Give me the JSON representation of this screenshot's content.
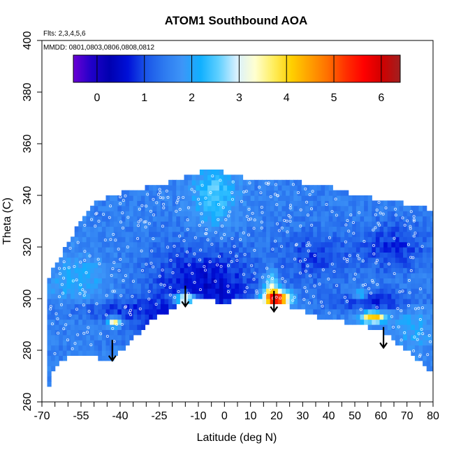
{
  "chart_data": {
    "type": "heatmap",
    "title": "ATOM1 Southbound AOA",
    "xlabel": "Latitude (deg N)",
    "ylabel": "Theta (C)",
    "flights_note": "Flts: 2,3,4,5,6",
    "dates_note": "MMDD: 0801,0803,0806,0808,0812",
    "xlim": [
      -70,
      80
    ],
    "ylim": [
      260,
      400
    ],
    "x_ticks": [
      "-70",
      "-55",
      "-40",
      "-25",
      "-10",
      "0",
      "10",
      "20",
      "30",
      "40",
      "50",
      "60",
      "70",
      "80"
    ],
    "x_tick_values": [
      -70,
      -55,
      -40,
      -25,
      -10,
      0,
      10,
      20,
      30,
      40,
      50,
      60,
      70,
      80
    ],
    "x_minor_ticks": [
      -65,
      -60,
      -50,
      -45,
      -35,
      -30,
      -20,
      -15,
      -5,
      5,
      15,
      25,
      35,
      45,
      55,
      65,
      75
    ],
    "y_ticks": [
      "260",
      "280",
      "300",
      "320",
      "340",
      "360",
      "380",
      "400"
    ],
    "y_tick_values": [
      260,
      280,
      300,
      320,
      340,
      360,
      380,
      400
    ],
    "colorbar": {
      "min": -0.5,
      "max": 6.4,
      "ticks": [
        "0",
        "1",
        "2",
        "3",
        "4",
        "5",
        "6"
      ],
      "tick_values": [
        0,
        1,
        2,
        3,
        4,
        5,
        6
      ],
      "stops": [
        "#6a00d4",
        "#2000c8",
        "#0000b0",
        "#0010d8",
        "#1a55e8",
        "#2d7af0",
        "#3d95f8",
        "#10b0ff",
        "#60d0ff",
        "#d8f0ff",
        "#ffffd0",
        "#ffee60",
        "#ffd000",
        "#ffa000",
        "#ff7000",
        "#ff3000",
        "#ff0000",
        "#d00000",
        "#a02020"
      ]
    },
    "surface_boundary": [
      [
        -68,
        264
      ],
      [
        -66,
        272
      ],
      [
        -62,
        276
      ],
      [
        -58,
        278
      ],
      [
        -53,
        278
      ],
      [
        -48,
        277
      ],
      [
        -44,
        276
      ],
      [
        -40,
        280
      ],
      [
        -36,
        283
      ],
      [
        -30,
        290
      ],
      [
        -24,
        294
      ],
      [
        -18,
        297
      ],
      [
        -13,
        299
      ],
      [
        -8,
        300
      ],
      [
        -3,
        299
      ],
      [
        0,
        298
      ],
      [
        3,
        299
      ],
      [
        6,
        300
      ],
      [
        10,
        300
      ],
      [
        14,
        299
      ],
      [
        18,
        298
      ],
      [
        22,
        298
      ],
      [
        28,
        296
      ],
      [
        35,
        293
      ],
      [
        42,
        292
      ],
      [
        50,
        290
      ],
      [
        55,
        289
      ],
      [
        61,
        287
      ],
      [
        66,
        283
      ],
      [
        70,
        280
      ],
      [
        74,
        276
      ],
      [
        78,
        273
      ],
      [
        80,
        272
      ]
    ],
    "top_boundary": [
      [
        -68,
        306
      ],
      [
        -66,
        312
      ],
      [
        -62,
        318
      ],
      [
        -60,
        322
      ],
      [
        -58,
        325
      ],
      [
        -55,
        330
      ],
      [
        -52,
        335
      ],
      [
        -48,
        338
      ],
      [
        -42,
        340
      ],
      [
        -36,
        342
      ],
      [
        -30,
        343
      ],
      [
        -24,
        344
      ],
      [
        -16,
        347
      ],
      [
        -10,
        349
      ],
      [
        -6,
        351
      ],
      [
        -2,
        350
      ],
      [
        0,
        349
      ],
      [
        4,
        348
      ],
      [
        10,
        346
      ],
      [
        16,
        347
      ],
      [
        24,
        346
      ],
      [
        30,
        345
      ],
      [
        36,
        344
      ],
      [
        42,
        343
      ],
      [
        48,
        341
      ],
      [
        52,
        340
      ],
      [
        56,
        339
      ],
      [
        62,
        338
      ],
      [
        68,
        337
      ],
      [
        74,
        336
      ],
      [
        78,
        335
      ],
      [
        80,
        334
      ]
    ],
    "background_aoa": 1.5,
    "aoa_features": [
      {
        "lat": -8,
        "theta": 304,
        "sx": 14,
        "sy": 12,
        "value": -1.0
      },
      {
        "lat": 35,
        "theta": 316,
        "sx": 9,
        "sy": 7,
        "value": -0.6
      },
      {
        "lat": 65,
        "theta": 320,
        "sx": 9,
        "sy": 7,
        "value": -0.7
      },
      {
        "lat": 60,
        "theta": 299,
        "sx": 12,
        "sy": 3,
        "value": -0.8
      },
      {
        "lat": -48,
        "theta": 296,
        "sx": 12,
        "sy": 3,
        "value": -0.6
      },
      {
        "lat": -30,
        "theta": 292,
        "sx": 8,
        "sy": 5,
        "value": -0.4
      },
      {
        "lat": -4,
        "theta": 340,
        "sx": 6,
        "sy": 9,
        "value": 1.0
      },
      {
        "lat": -56,
        "theta": 306,
        "sx": 8,
        "sy": 8,
        "value": 0.6
      },
      {
        "lat": 72,
        "theta": 290,
        "sx": 6,
        "sy": 8,
        "value": 0.5
      },
      {
        "lat": 20,
        "theta": 300,
        "sx": 3.5,
        "sy": 2.2,
        "value": 4.3
      },
      {
        "lat": 18,
        "theta": 305,
        "sx": 2,
        "sy": 4,
        "value": 1.6
      },
      {
        "lat": -15,
        "theta": 300,
        "sx": 3,
        "sy": 1.5,
        "value": 2.8
      },
      {
        "lat": -42,
        "theta": 291,
        "sx": 1.8,
        "sy": 1.3,
        "value": 2.4
      },
      {
        "lat": 57,
        "theta": 293,
        "sx": 3.5,
        "sy": 1.5,
        "value": 2.9
      },
      {
        "lat": 52,
        "theta": 302,
        "sx": 2,
        "sy": 1.4,
        "value": 1.4
      }
    ],
    "arrows": [
      {
        "lat": -43,
        "theta_start": 284,
        "theta_end": 276
      },
      {
        "lat": -15,
        "theta_start": 305,
        "theta_end": 297
      },
      {
        "lat": 19,
        "theta_start": 303,
        "theta_end": 295
      },
      {
        "lat": 61,
        "theta_start": 289,
        "theta_end": 281
      }
    ],
    "grid": false,
    "markers": "white open circles along flight profiles"
  }
}
